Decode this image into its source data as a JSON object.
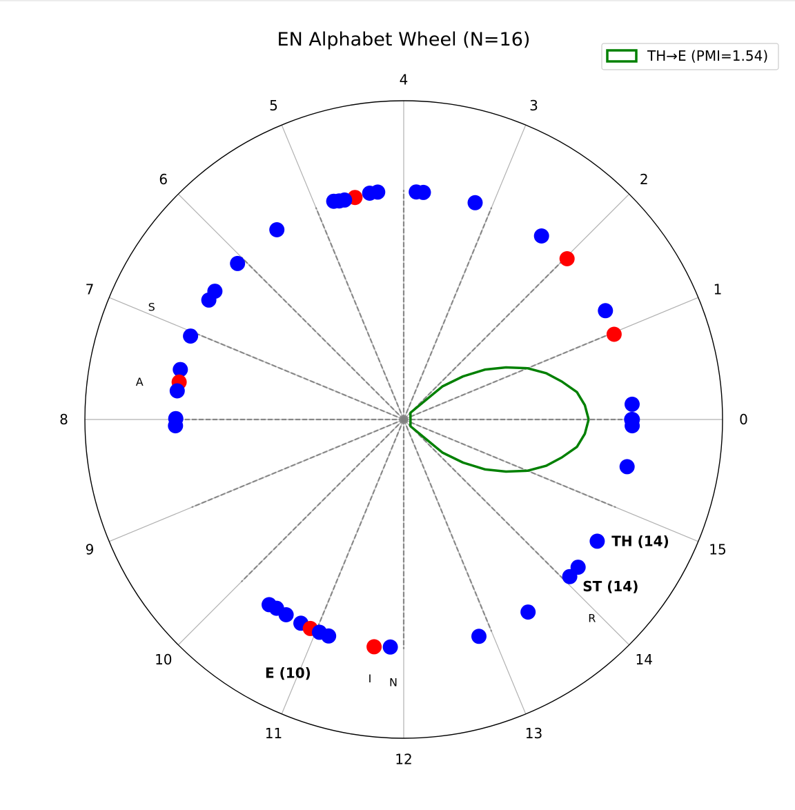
{
  "chart_data": {
    "type": "scatter",
    "projection": "polar",
    "title": "EN Alphabet Wheel (N=16)",
    "angular_axis": {
      "zero_direction": "east",
      "direction": "counterclockwise",
      "tick_labels": [
        "0",
        "1",
        "2",
        "3",
        "4",
        "5",
        "6",
        "7",
        "8",
        "9",
        "10",
        "11",
        "12",
        "13",
        "14",
        "15"
      ]
    },
    "rlim": [
      0,
      1
    ],
    "grid": true,
    "legend": {
      "position": "top-right",
      "entries": [
        {
          "label": "TH→E (PMI=1.54)",
          "color": "#008000"
        }
      ]
    },
    "colors": {
      "blue_points": "#0000ff",
      "red_points": "#ff0000",
      "curve": "#008000",
      "spokes": "#808080",
      "grid": "#b0b0b0"
    },
    "dashed_spokes": {
      "r": 0.72,
      "slots": [
        0,
        1,
        2,
        3,
        4,
        5,
        6,
        7,
        8,
        9,
        10,
        11,
        12,
        13,
        14,
        15
      ]
    },
    "points": [
      {
        "slot": 0.0,
        "r": 0.715,
        "color": "blue"
      },
      {
        "slot": 0.0,
        "r": 0.717,
        "color": "blue"
      },
      {
        "slot": 0.17,
        "r": 0.718,
        "color": "blue"
      },
      {
        "slot": -0.07,
        "r": 0.717,
        "color": "blue"
      },
      {
        "slot": -0.53,
        "r": 0.716,
        "color": "blue"
      },
      {
        "slot": 0.98,
        "r": 0.712,
        "color": "red"
      },
      {
        "slot": 1.26,
        "r": 0.719,
        "color": "blue"
      },
      {
        "slot": 1.98,
        "r": 0.719,
        "color": "red"
      },
      {
        "slot": 2.36,
        "r": 0.72,
        "color": "blue"
      },
      {
        "slot": 3.19,
        "r": 0.716,
        "color": "blue"
      },
      {
        "slot": 3.78,
        "r": 0.715,
        "color": "blue"
      },
      {
        "slot": 3.86,
        "r": 0.715,
        "color": "blue"
      },
      {
        "slot": 4.29,
        "r": 0.718,
        "color": "blue"
      },
      {
        "slot": 4.38,
        "r": 0.718,
        "color": "blue"
      },
      {
        "slot": 4.55,
        "r": 0.713,
        "color": "red"
      },
      {
        "slot": 4.67,
        "r": 0.713,
        "color": "blue"
      },
      {
        "slot": 4.73,
        "r": 0.715,
        "color": "blue"
      },
      {
        "slot": 4.79,
        "r": 0.719,
        "color": "blue"
      },
      {
        "slot": 5.5,
        "r": 0.716,
        "color": "blue"
      },
      {
        "slot": 6.08,
        "r": 0.715,
        "color": "blue"
      },
      {
        "slot": 6.48,
        "r": 0.716,
        "color": "blue"
      },
      {
        "slot": 6.6,
        "r": 0.717,
        "color": "blue"
      },
      {
        "slot": 7.05,
        "r": 0.718,
        "color": "blue"
      },
      {
        "slot": 7.44,
        "r": 0.718,
        "color": "blue"
      },
      {
        "slot": 7.58,
        "r": 0.714,
        "color": "red"
      },
      {
        "slot": 7.68,
        "r": 0.716,
        "color": "blue"
      },
      {
        "slot": 7.99,
        "r": 0.715,
        "color": "blue"
      },
      {
        "slot": 8.07,
        "r": 0.716,
        "color": "blue"
      },
      {
        "slot": 10.4,
        "r": 0.718,
        "color": "blue"
      },
      {
        "slot": 10.49,
        "r": 0.714,
        "color": "blue"
      },
      {
        "slot": 10.62,
        "r": 0.715,
        "color": "blue"
      },
      {
        "slot": 10.81,
        "r": 0.716,
        "color": "blue"
      },
      {
        "slot": 10.93,
        "r": 0.718,
        "color": "red"
      },
      {
        "slot": 11.04,
        "r": 0.718,
        "color": "blue"
      },
      {
        "slot": 11.15,
        "r": 0.719,
        "color": "blue"
      },
      {
        "slot": 11.67,
        "r": 0.719,
        "color": "red"
      },
      {
        "slot": 11.85,
        "r": 0.715,
        "color": "blue"
      },
      {
        "slot": 12.85,
        "r": 0.72,
        "color": "blue"
      },
      {
        "slot": 13.46,
        "r": 0.719,
        "color": "blue"
      },
      {
        "slot": 14.07,
        "r": 0.717,
        "color": "blue"
      },
      {
        "slot": 14.21,
        "r": 0.717,
        "color": "blue"
      },
      {
        "slot": 14.57,
        "r": 0.717,
        "color": "blue"
      }
    ],
    "curve": {
      "label": "TH→E (PMI=1.54)",
      "points": [
        [
          0.0,
          0.58
        ],
        [
          0.2,
          0.57
        ],
        [
          0.4,
          0.55
        ],
        [
          0.6,
          0.51
        ],
        [
          0.8,
          0.47
        ],
        [
          1.0,
          0.42
        ],
        [
          1.2,
          0.36
        ],
        [
          1.4,
          0.3
        ],
        [
          1.6,
          0.23
        ],
        [
          1.8,
          0.16
        ],
        [
          2.0,
          0.03
        ],
        [
          14.0,
          0.03
        ],
        [
          14.2,
          0.16
        ],
        [
          14.4,
          0.23
        ],
        [
          14.6,
          0.3
        ],
        [
          14.8,
          0.36
        ],
        [
          15.0,
          0.42
        ],
        [
          15.2,
          0.47
        ],
        [
          15.4,
          0.51
        ],
        [
          15.6,
          0.55
        ],
        [
          15.8,
          0.57
        ],
        [
          16.0,
          0.58
        ]
      ]
    },
    "annotations": [
      {
        "text": "TH (14)",
        "slot": 14.79,
        "r": 0.835,
        "bold": true
      },
      {
        "text": "ST (14)",
        "slot": 14.27,
        "r": 0.834,
        "bold": true
      },
      {
        "text": "E (10)",
        "slot": 10.91,
        "r": 0.874,
        "bold": true
      },
      {
        "text": "S",
        "slot": 6.93,
        "r": 0.866,
        "bold": false
      },
      {
        "text": "A",
        "slot": 7.64,
        "r": 0.837,
        "bold": false
      },
      {
        "text": "R",
        "slot": 13.93,
        "r": 0.859,
        "bold": false
      },
      {
        "text": "I",
        "slot": 11.67,
        "r": 0.82,
        "bold": false
      },
      {
        "text": "N",
        "slot": 11.9,
        "r": 0.825,
        "bold": false
      }
    ]
  }
}
